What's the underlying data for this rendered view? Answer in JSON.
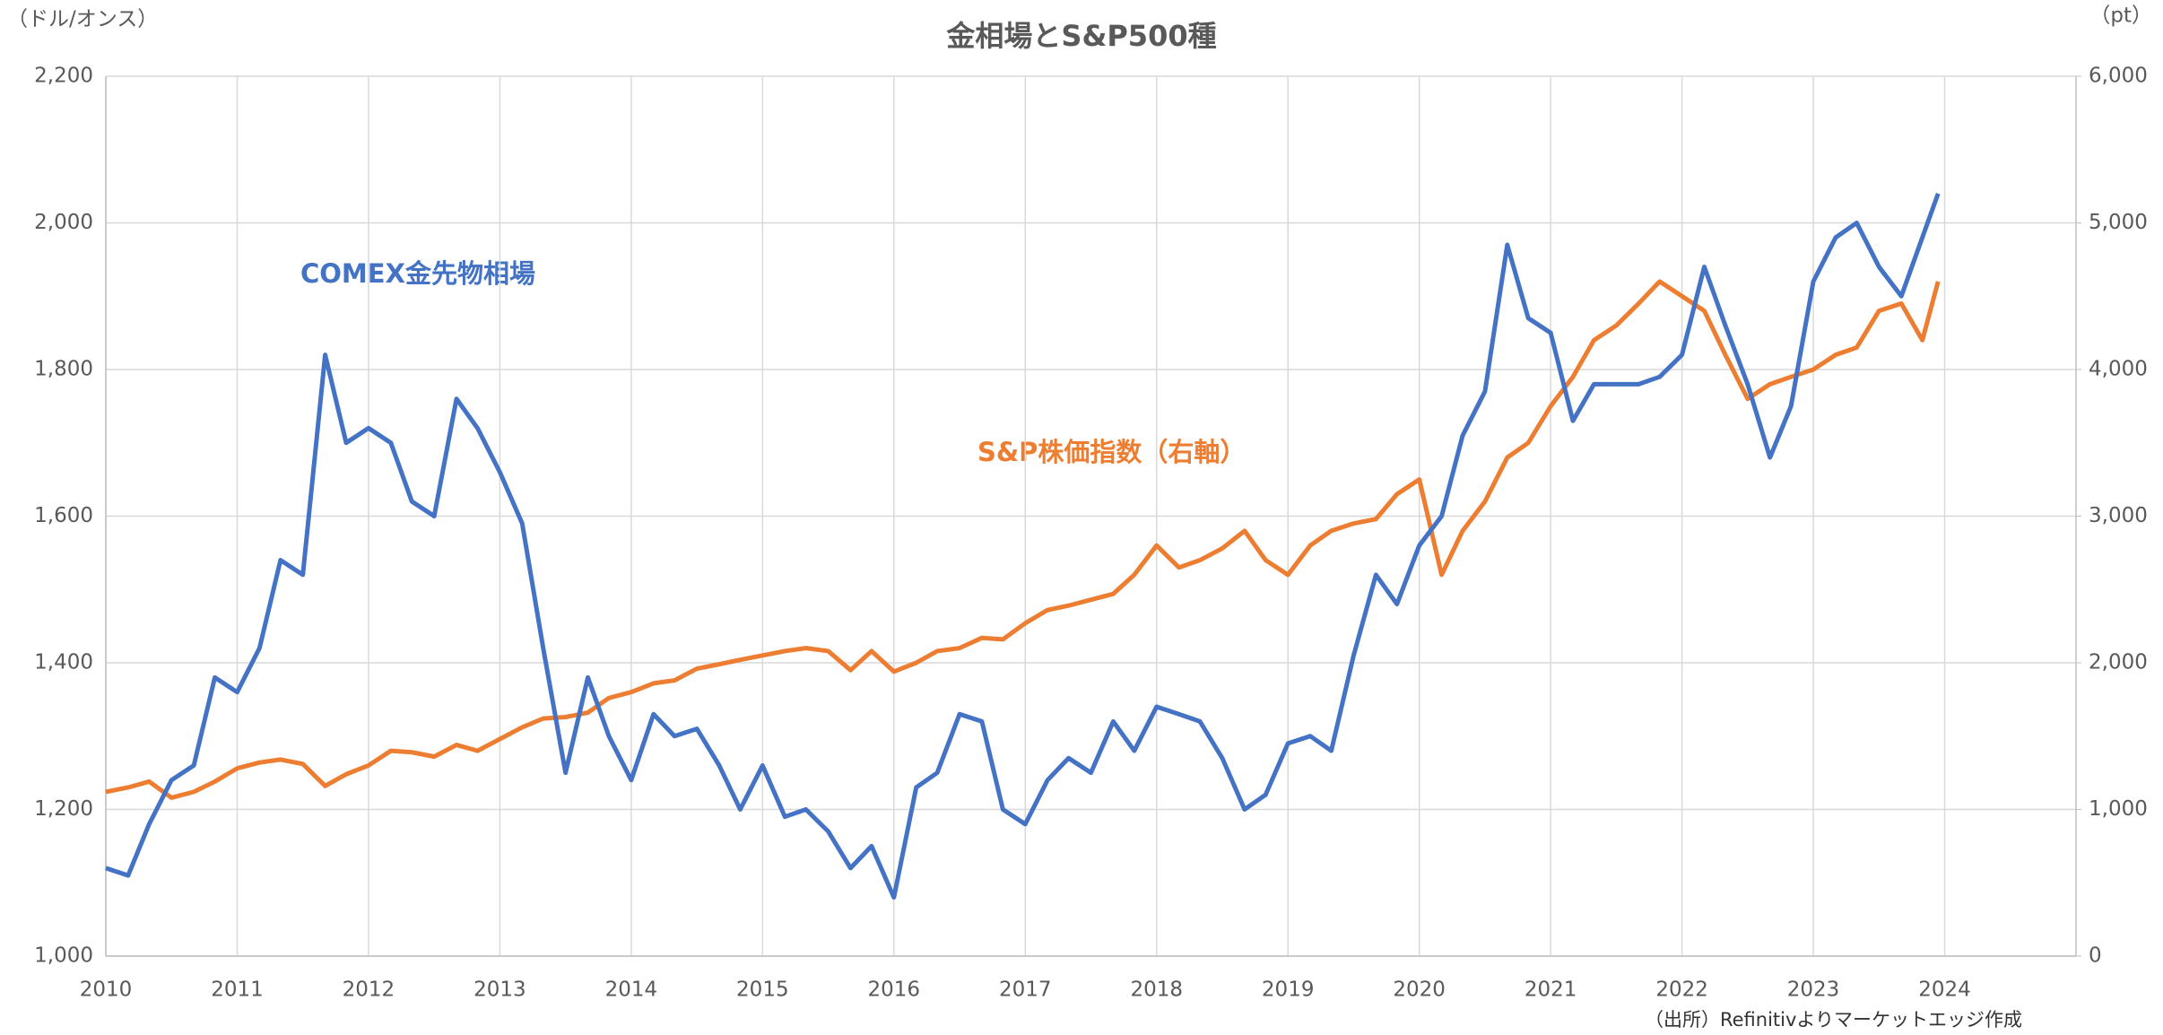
{
  "chart_data": {
    "type": "line",
    "title": "金相場とS&P500種",
    "y_axis_label": "（ドル/オンス）",
    "y2_axis_label": "（pt）",
    "source": "（出所）Refinitivよりマーケットエッジ作成",
    "annotations": [
      "COMEX金先物相場",
      "S&P株価指数（右軸）"
    ],
    "grid": true,
    "xlim": [
      2010,
      2025
    ],
    "xticks": [
      2010,
      2011,
      2012,
      2013,
      2014,
      2015,
      2016,
      2017,
      2018,
      2019,
      2020,
      2021,
      2022,
      2023,
      2024
    ],
    "ylim": [
      1000,
      2200
    ],
    "yticks": [
      {
        "value": 1000,
        "label": "1,000"
      },
      {
        "value": 1200,
        "label": "1,200"
      },
      {
        "value": 1400,
        "label": "1,400"
      },
      {
        "value": 1600,
        "label": "1,600"
      },
      {
        "value": 1800,
        "label": "1,800"
      },
      {
        "value": 2000,
        "label": "2,000"
      },
      {
        "value": 2200,
        "label": "2,200"
      }
    ],
    "y2lim": [
      0,
      6000
    ],
    "y2ticks": [
      0,
      {
        "value": 1000,
        "label": "1,000"
      },
      {
        "value": 2000,
        "label": "2,000"
      },
      {
        "value": 3000,
        "label": "3,000"
      },
      {
        "value": 4000,
        "label": "4,000"
      },
      {
        "value": 5000,
        "label": "5,000"
      },
      {
        "value": 6000,
        "label": "6,000"
      }
    ],
    "x": [
      2010.0,
      2010.17,
      2010.33,
      2010.5,
      2010.67,
      2010.83,
      2011.0,
      2011.17,
      2011.33,
      2011.5,
      2011.67,
      2011.83,
      2012.0,
      2012.17,
      2012.33,
      2012.5,
      2012.67,
      2012.83,
      2013.0,
      2013.17,
      2013.33,
      2013.5,
      2013.67,
      2013.83,
      2014.0,
      2014.17,
      2014.33,
      2014.5,
      2014.67,
      2014.83,
      2015.0,
      2015.17,
      2015.33,
      2015.5,
      2015.67,
      2015.83,
      2016.0,
      2016.17,
      2016.33,
      2016.5,
      2016.67,
      2016.83,
      2017.0,
      2017.17,
      2017.33,
      2017.5,
      2017.67,
      2017.83,
      2018.0,
      2018.17,
      2018.33,
      2018.5,
      2018.67,
      2018.83,
      2019.0,
      2019.17,
      2019.33,
      2019.5,
      2019.67,
      2019.83,
      2020.0,
      2020.17,
      2020.33,
      2020.5,
      2020.67,
      2020.83,
      2021.0,
      2021.17,
      2021.33,
      2021.5,
      2021.67,
      2021.83,
      2022.0,
      2022.17,
      2022.33,
      2022.5,
      2022.67,
      2022.83,
      2023.0,
      2023.17,
      2023.33,
      2023.5,
      2023.67,
      2023.83,
      2023.95
    ],
    "series": [
      {
        "name": "COMEX金先物相場",
        "color": "#4472c4",
        "axis": "y",
        "values": [
          1120,
          1110,
          1180,
          1240,
          1260,
          1380,
          1360,
          1420,
          1540,
          1520,
          1820,
          1700,
          1720,
          1700,
          1620,
          1600,
          1760,
          1720,
          1660,
          1590,
          1420,
          1250,
          1380,
          1300,
          1240,
          1330,
          1300,
          1310,
          1260,
          1200,
          1260,
          1190,
          1200,
          1170,
          1120,
          1150,
          1080,
          1230,
          1250,
          1330,
          1320,
          1200,
          1180,
          1240,
          1270,
          1250,
          1320,
          1280,
          1340,
          1330,
          1320,
          1270,
          1200,
          1220,
          1290,
          1300,
          1280,
          1410,
          1520,
          1480,
          1560,
          1600,
          1710,
          1770,
          1970,
          1870,
          1850,
          1730,
          1780,
          1780,
          1780,
          1790,
          1820,
          1940,
          1860,
          1780,
          1680,
          1750,
          1920,
          1980,
          2000,
          1940,
          1900,
          1980,
          2040
        ]
      },
      {
        "name": "S&P株価指数（右軸）",
        "color": "#ed7d31",
        "axis": "y2",
        "values": [
          1120,
          1150,
          1190,
          1080,
          1120,
          1190,
          1280,
          1320,
          1340,
          1310,
          1160,
          1240,
          1300,
          1400,
          1390,
          1360,
          1440,
          1400,
          1480,
          1560,
          1620,
          1630,
          1660,
          1760,
          1800,
          1860,
          1880,
          1960,
          1990,
          2020,
          2050,
          2080,
          2100,
          2080,
          1950,
          2080,
          1940,
          2000,
          2080,
          2100,
          2170,
          2160,
          2270,
          2360,
          2390,
          2430,
          2470,
          2600,
          2800,
          2650,
          2700,
          2780,
          2900,
          2700,
          2600,
          2800,
          2900,
          2950,
          2980,
          3150,
          3250,
          2600,
          2900,
          3100,
          3400,
          3500,
          3750,
          3950,
          4200,
          4300,
          4450,
          4600,
          4500,
          4400,
          4100,
          3800,
          3900,
          3950,
          4000,
          4100,
          4150,
          4400,
          4450,
          4200,
          4600
        ]
      }
    ]
  }
}
